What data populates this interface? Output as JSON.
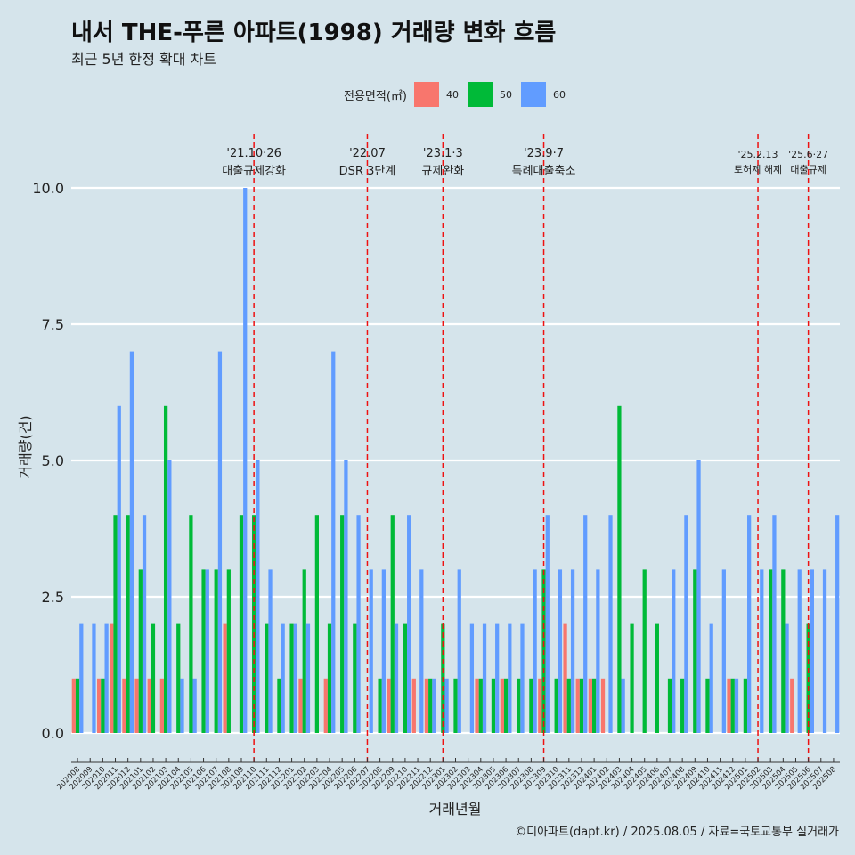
{
  "header": {
    "title": "내서 THE-푸른 아파트(1998) 거래량 변화 흐름",
    "subtitle": "최근 5년 한정 확대 차트"
  },
  "legend": {
    "title": "전용면적(㎡)",
    "position": "top-center",
    "items": [
      {
        "label": "40",
        "color": "#f8766d"
      },
      {
        "label": "50",
        "color": "#00ba38"
      },
      {
        "label": "60",
        "color": "#619cff"
      }
    ]
  },
  "caption": "©디아파트(dapt.kr) / 2025.08.05 / 자료=국토교통부 실거래가",
  "chart_data": {
    "type": "bar",
    "bar_mode": "dodge",
    "xlabel": "거래년월",
    "ylabel": "거래량(건)",
    "ylim": [
      0,
      10
    ],
    "yticks": [
      "0.0",
      "2.5",
      "5.0",
      "7.5",
      "10.0"
    ],
    "grid": "horizontal",
    "categories": [
      "202008",
      "202009",
      "202010",
      "202011",
      "202012",
      "202101",
      "202102",
      "202103",
      "202104",
      "202105",
      "202106",
      "202107",
      "202108",
      "202109",
      "202110",
      "202111",
      "202112",
      "202201",
      "202202",
      "202203",
      "202204",
      "202205",
      "202206",
      "202207",
      "202208",
      "202209",
      "202210",
      "202211",
      "202212",
      "202301",
      "202302",
      "202303",
      "202304",
      "202305",
      "202306",
      "202307",
      "202308",
      "202309",
      "202310",
      "202311",
      "202312",
      "202401",
      "202402",
      "202403",
      "202404",
      "202405",
      "202406",
      "202407",
      "202408",
      "202409",
      "202410",
      "202411",
      "202412",
      "202501",
      "202502",
      "202503",
      "202504",
      "202505",
      "202506",
      "202507",
      "202508"
    ],
    "tick_labels": [
      "202008",
      "202009",
      "202010",
      "202011",
      "202012",
      "202101",
      "202102",
      "202103",
      "202104",
      "202105",
      "202106",
      "202107",
      "202108",
      "202109",
      "202110",
      "202111",
      "202112",
      "202201",
      "202202",
      "202203",
      "202204",
      "202205",
      "202206",
      "202207",
      "202208",
      "202209",
      "202210",
      "202211",
      "202212",
      "202301",
      "202302",
      "202303",
      "202304",
      "202305",
      "202306",
      "202307",
      "202308",
      "202309",
      "202310",
      "202311",
      "202312",
      "202401",
      "202402",
      "202403",
      "202404",
      "202405",
      "202406",
      "202407",
      "202408",
      "202409",
      "202410",
      "202411",
      "202412",
      "202501",
      "202502",
      "202503",
      "202504",
      "202505",
      "202506",
      "202507",
      "202508"
    ],
    "series": [
      {
        "name": "40",
        "color": "#f8766d",
        "values": [
          1,
          0,
          1,
          2,
          1,
          1,
          1,
          1,
          0,
          0,
          0,
          0,
          2,
          0,
          0,
          0,
          0,
          0,
          1,
          0,
          1,
          0,
          0,
          0,
          0,
          1,
          0,
          1,
          1,
          0,
          0,
          0,
          1,
          0,
          1,
          0,
          0,
          1,
          0,
          2,
          1,
          1,
          1,
          0,
          0,
          0,
          0,
          0,
          0,
          0,
          0,
          0,
          1,
          0,
          0,
          0,
          0,
          1,
          0,
          0,
          0
        ]
      },
      {
        "name": "50",
        "color": "#00ba38",
        "values": [
          1,
          0,
          1,
          4,
          4,
          3,
          2,
          6,
          2,
          4,
          3,
          3,
          3,
          4,
          4,
          2,
          1,
          2,
          3,
          4,
          2,
          4,
          2,
          0,
          1,
          4,
          2,
          0,
          1,
          2,
          1,
          0,
          1,
          1,
          1,
          1,
          1,
          3,
          1,
          1,
          1,
          1,
          0,
          6,
          2,
          3,
          2,
          1,
          1,
          3,
          1,
          0,
          1,
          1,
          0,
          3,
          3,
          0,
          2,
          0,
          0
        ]
      },
      {
        "name": "60",
        "color": "#619cff",
        "values": [
          2,
          2,
          2,
          6,
          7,
          4,
          0,
          5,
          1,
          1,
          3,
          7,
          0,
          10,
          5,
          3,
          2,
          2,
          2,
          0,
          7,
          5,
          4,
          3,
          3,
          2,
          4,
          3,
          1,
          1,
          3,
          2,
          2,
          2,
          2,
          2,
          3,
          4,
          3,
          3,
          4,
          3,
          4,
          1,
          0,
          0,
          0,
          3,
          4,
          5,
          2,
          3,
          1,
          4,
          3,
          4,
          2,
          3,
          3,
          3,
          4
        ]
      }
    ],
    "annotations": [
      {
        "date": "'21.10·26",
        "label": "대출규제강화",
        "at": "202110"
      },
      {
        "date": "'22.07",
        "label": "DSR 3단계",
        "at": "202207"
      },
      {
        "date": "'23.1·3",
        "label": "규제완화",
        "at": "202301"
      },
      {
        "date": "'23.9·7",
        "label": "특례대출축소",
        "at": "202309"
      },
      {
        "date": "'25.2.13",
        "label": "토허제 해제",
        "at": "202502"
      },
      {
        "date": "'25.6·27",
        "label": "대출규제",
        "at": "202506"
      }
    ]
  }
}
